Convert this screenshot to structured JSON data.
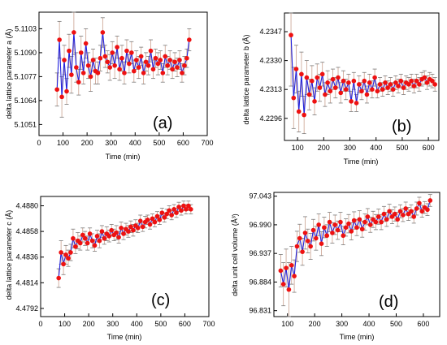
{
  "figure": {
    "panels": [
      {
        "id": "a",
        "panel_label": "(a)",
        "xlabel": "Time (min)",
        "ylabel": "delta lattice parameter a (Å)",
        "xlim": [
          0,
          700
        ],
        "ylim": [
          5.1045,
          5.1112
        ],
        "xticks": [
          0,
          100,
          200,
          300,
          400,
          500,
          600,
          700
        ],
        "yticks": [
          "5.1051",
          "5.1064",
          "5.1077",
          "5.1090",
          "5.1103"
        ]
      },
      {
        "id": "b",
        "panel_label": "(b)",
        "xlabel": "Time (min)",
        "ylabel": "delta lattice parameter b (Å)",
        "xlim": [
          50,
          640
        ],
        "ylim": [
          4.2283,
          4.2358
        ],
        "xticks": [
          100,
          200,
          300,
          400,
          500,
          600
        ],
        "yticks": [
          "4.2296",
          "4.2313",
          "4.2330",
          "4.2347"
        ]
      },
      {
        "id": "c",
        "panel_label": "(c)",
        "xlabel": "Time (min)",
        "ylabel": "delta lattice parameter c (Å)",
        "xlim": [
          0,
          700
        ],
        "ylim": [
          4.4785,
          4.4888
        ],
        "xticks": [
          0,
          100,
          200,
          300,
          400,
          500,
          600,
          700
        ],
        "yticks": [
          "4.4792",
          "4.4814",
          "4.4836",
          "4.4858",
          "4.4880"
        ]
      },
      {
        "id": "d",
        "panel_label": "(d)",
        "xlabel": "Time (min)",
        "ylabel": "delta unit cell volume (Å³)",
        "xlim": [
          50,
          660
        ],
        "ylim": [
          96.82,
          97.05
        ],
        "xticks": [
          100,
          200,
          300,
          400,
          500,
          600
        ],
        "yticks": [
          "96.831",
          "96.884",
          "96.937",
          "96.990",
          "97.043"
        ]
      }
    ]
  },
  "chart_data": [
    {
      "type": "scatter",
      "panel_label": "(a)",
      "xlabel": "Time (min)",
      "ylabel": "delta lattice parameter a (Å)",
      "xlim": [
        0,
        700
      ],
      "ylim": [
        5.1045,
        5.1112
      ],
      "grid": false,
      "style": {
        "line_color": "#2222dd",
        "marker_color": "#ee1111",
        "errorbar_color": "#c9a08e"
      },
      "x": [
        75,
        85,
        95,
        105,
        115,
        125,
        135,
        145,
        155,
        165,
        175,
        185,
        195,
        205,
        215,
        225,
        235,
        245,
        255,
        265,
        275,
        285,
        295,
        305,
        315,
        325,
        335,
        345,
        355,
        365,
        375,
        385,
        395,
        405,
        415,
        425,
        435,
        445,
        455,
        465,
        475,
        485,
        495,
        505,
        515,
        525,
        535,
        545,
        555,
        565,
        575,
        585,
        595,
        605,
        615,
        625
      ],
      "y": [
        5.107,
        5.1097,
        5.1066,
        5.1086,
        5.1069,
        5.1091,
        5.1078,
        5.1101,
        5.1082,
        5.1074,
        5.109,
        5.1079,
        5.1095,
        5.1083,
        5.1077,
        5.1086,
        5.108,
        5.1079,
        5.1087,
        5.1101,
        5.1088,
        5.1085,
        5.1082,
        5.109,
        5.1083,
        5.1093,
        5.1081,
        5.1087,
        5.1079,
        5.1091,
        5.1084,
        5.109,
        5.108,
        5.1086,
        5.1082,
        5.1088,
        5.1079,
        5.1085,
        5.1083,
        5.1091,
        5.1081,
        5.1087,
        5.1084,
        5.1086,
        5.1079,
        5.1088,
        5.1083,
        5.1086,
        5.1081,
        5.1085,
        5.1082,
        5.1086,
        5.1079,
        5.1083,
        5.1087,
        5.1097
      ],
      "err": [
        0.0009,
        0.001,
        0.0011,
        0.0008,
        0.0007,
        0.0009,
        0.001,
        0.0012,
        0.0008,
        0.0007,
        0.0009,
        0.0006,
        0.0008,
        0.0007,
        0.0008,
        0.0006,
        0.0007,
        0.0006,
        0.0007,
        0.0008,
        0.0006,
        0.0006,
        0.0007,
        0.0006,
        0.0007,
        0.0006,
        0.0006,
        0.0007,
        0.0006,
        0.0006,
        0.0005,
        0.0006,
        0.0006,
        0.0005,
        0.0006,
        0.0005,
        0.0006,
        0.0005,
        0.0005,
        0.0006,
        0.0005,
        0.0005,
        0.0006,
        0.0005,
        0.0005,
        0.0006,
        0.0005,
        0.0005,
        0.0005,
        0.0005,
        0.0005,
        0.0005,
        0.0005,
        0.0005,
        0.0005,
        0.0006
      ]
    },
    {
      "type": "scatter",
      "panel_label": "(b)",
      "xlabel": "Time (min)",
      "ylabel": "delta lattice parameter b (Å)",
      "xlim": [
        50,
        640
      ],
      "ylim": [
        4.2283,
        4.2358
      ],
      "grid": false,
      "style": {
        "line_color": "#2222dd",
        "marker_color": "#ee1111",
        "errorbar_color": "#c9a08e"
      },
      "x": [
        75,
        85,
        95,
        105,
        115,
        125,
        135,
        145,
        155,
        165,
        175,
        185,
        195,
        205,
        215,
        225,
        235,
        245,
        255,
        265,
        275,
        285,
        295,
        305,
        315,
        325,
        335,
        345,
        355,
        365,
        375,
        385,
        395,
        405,
        415,
        425,
        435,
        445,
        455,
        465,
        475,
        485,
        495,
        505,
        515,
        525,
        535,
        545,
        555,
        565,
        575,
        585,
        595,
        605,
        615,
        625
      ],
      "y": [
        4.2345,
        4.2308,
        4.2325,
        4.23,
        4.2322,
        4.2298,
        4.232,
        4.231,
        4.2318,
        4.2306,
        4.232,
        4.2314,
        4.2322,
        4.231,
        4.2317,
        4.2312,
        4.2319,
        4.2314,
        4.232,
        4.2311,
        4.2318,
        4.2313,
        4.2317,
        4.2306,
        4.2318,
        4.2305,
        4.2316,
        4.2312,
        4.2318,
        4.231,
        4.2317,
        4.2313,
        4.232,
        4.2312,
        4.2316,
        4.2313,
        4.2317,
        4.2314,
        4.2316,
        4.2313,
        4.2317,
        4.2315,
        4.2318,
        4.2314,
        4.2317,
        4.2316,
        4.2318,
        4.2315,
        4.2318,
        4.2316,
        4.2319,
        4.232,
        4.2317,
        4.2319,
        4.2318,
        4.2316
      ],
      "err": [
        0.003,
        0.0018,
        0.0014,
        0.0012,
        0.0013,
        0.0011,
        0.001,
        0.0009,
        0.0009,
        0.0008,
        0.0008,
        0.0008,
        0.0007,
        0.0007,
        0.0007,
        0.0007,
        0.0006,
        0.0006,
        0.0006,
        0.0006,
        0.0006,
        0.0006,
        0.0005,
        0.0006,
        0.0005,
        0.0005,
        0.0005,
        0.0005,
        0.0005,
        0.0005,
        0.0005,
        0.0005,
        0.0005,
        0.0004,
        0.0004,
        0.0004,
        0.0004,
        0.0004,
        0.0004,
        0.0004,
        0.0004,
        0.0004,
        0.0004,
        0.0004,
        0.0004,
        0.0004,
        0.0004,
        0.0004,
        0.0004,
        0.0004,
        0.0004,
        0.0004,
        0.0004,
        0.0004,
        0.0004,
        0.0004
      ]
    },
    {
      "type": "scatter",
      "panel_label": "(c)",
      "xlabel": "Time (min)",
      "ylabel": "delta lattice parameter c (Å)",
      "xlim": [
        0,
        700
      ],
      "ylim": [
        4.4785,
        4.4888
      ],
      "grid": false,
      "style": {
        "line_color": "#2222dd",
        "marker_color": "#ee1111",
        "errorbar_color": "#c9a08e"
      },
      "x": [
        75,
        85,
        95,
        105,
        115,
        125,
        135,
        145,
        155,
        165,
        175,
        185,
        195,
        205,
        215,
        225,
        235,
        245,
        255,
        265,
        275,
        285,
        295,
        305,
        315,
        325,
        335,
        345,
        355,
        365,
        375,
        385,
        395,
        405,
        415,
        425,
        435,
        445,
        455,
        465,
        475,
        485,
        495,
        505,
        515,
        525,
        535,
        545,
        555,
        565,
        575,
        585,
        595,
        605,
        615,
        625
      ],
      "y": [
        4.4818,
        4.484,
        4.483,
        4.4838,
        4.4835,
        4.484,
        4.4852,
        4.4845,
        4.485,
        4.4848,
        4.4855,
        4.4852,
        4.4848,
        4.4856,
        4.485,
        4.4846,
        4.4854,
        4.485,
        4.4858,
        4.4852,
        4.4856,
        4.4854,
        4.4859,
        4.4855,
        4.4857,
        4.4853,
        4.4861,
        4.4856,
        4.486,
        4.4858,
        4.4862,
        4.4859,
        4.4863,
        4.4861,
        4.4867,
        4.4862,
        4.4866,
        4.4868,
        4.4864,
        4.4869,
        4.4866,
        4.4871,
        4.4868,
        4.4874,
        4.487,
        4.4873,
        4.4876,
        4.4872,
        4.4877,
        4.4874,
        4.4879,
        4.4876,
        4.488,
        4.4877,
        4.488,
        4.4877
      ],
      "err": [
        0.0008,
        0.001,
        0.0009,
        0.0008,
        0.0007,
        0.0007,
        0.0008,
        0.0006,
        0.0007,
        0.0006,
        0.0006,
        0.0006,
        0.0006,
        0.0005,
        0.0006,
        0.0005,
        0.0005,
        0.0006,
        0.0005,
        0.0005,
        0.0006,
        0.0005,
        0.0005,
        0.0005,
        0.0006,
        0.0005,
        0.0005,
        0.0005,
        0.0005,
        0.0005,
        0.0005,
        0.0005,
        0.0005,
        0.0004,
        0.0005,
        0.0004,
        0.0005,
        0.0004,
        0.0004,
        0.0004,
        0.0004,
        0.0004,
        0.0004,
        0.0004,
        0.0004,
        0.0004,
        0.0004,
        0.0004,
        0.0004,
        0.0004,
        0.0004,
        0.0004,
        0.0004,
        0.0004,
        0.0004,
        0.0004
      ]
    },
    {
      "type": "scatter",
      "panel_label": "(d)",
      "xlabel": "Time (min)",
      "ylabel": "delta unit cell volume (Å³)",
      "xlim": [
        50,
        660
      ],
      "ylim": [
        96.82,
        97.05
      ],
      "grid": false,
      "style": {
        "line_color": "#2222dd",
        "marker_color": "#ee1111",
        "errorbar_color": "#c9a08e"
      },
      "x": [
        75,
        85,
        95,
        105,
        115,
        125,
        135,
        145,
        155,
        165,
        175,
        185,
        195,
        205,
        215,
        225,
        235,
        245,
        255,
        265,
        275,
        285,
        295,
        305,
        315,
        325,
        335,
        345,
        355,
        365,
        375,
        385,
        395,
        405,
        415,
        425,
        435,
        445,
        455,
        465,
        475,
        485,
        495,
        505,
        515,
        525,
        535,
        545,
        555,
        565,
        575,
        585,
        595,
        605,
        615,
        625
      ],
      "y": [
        96.905,
        96.88,
        96.91,
        96.87,
        96.915,
        96.895,
        96.95,
        96.965,
        96.94,
        96.975,
        96.96,
        96.95,
        96.98,
        96.965,
        96.99,
        96.955,
        96.985,
        96.97,
        96.995,
        96.975,
        96.99,
        96.98,
        96.995,
        96.97,
        96.985,
        96.992,
        96.978,
        96.998,
        96.985,
        97.0,
        96.982,
        96.995,
        97.005,
        96.99,
        97.0,
        96.995,
        97.005,
        96.995,
        97.01,
        97.0,
        97.015,
        97.005,
        97.01,
        97.0,
        97.015,
        97.008,
        97.02,
        97.01,
        97.015,
        97.005,
        97.02,
        97.03,
        97.015,
        97.022,
        97.018,
        97.035
      ],
      "err": [
        0.03,
        0.04,
        0.035,
        0.05,
        0.035,
        0.03,
        0.028,
        0.026,
        0.025,
        0.03,
        0.022,
        0.024,
        0.02,
        0.022,
        0.02,
        0.022,
        0.019,
        0.02,
        0.018,
        0.019,
        0.018,
        0.017,
        0.018,
        0.017,
        0.016,
        0.017,
        0.016,
        0.016,
        0.015,
        0.016,
        0.015,
        0.015,
        0.015,
        0.014,
        0.015,
        0.014,
        0.014,
        0.014,
        0.014,
        0.013,
        0.013,
        0.013,
        0.013,
        0.013,
        0.012,
        0.012,
        0.012,
        0.012,
        0.012,
        0.012,
        0.012,
        0.011,
        0.011,
        0.011,
        0.011,
        0.011
      ]
    }
  ]
}
